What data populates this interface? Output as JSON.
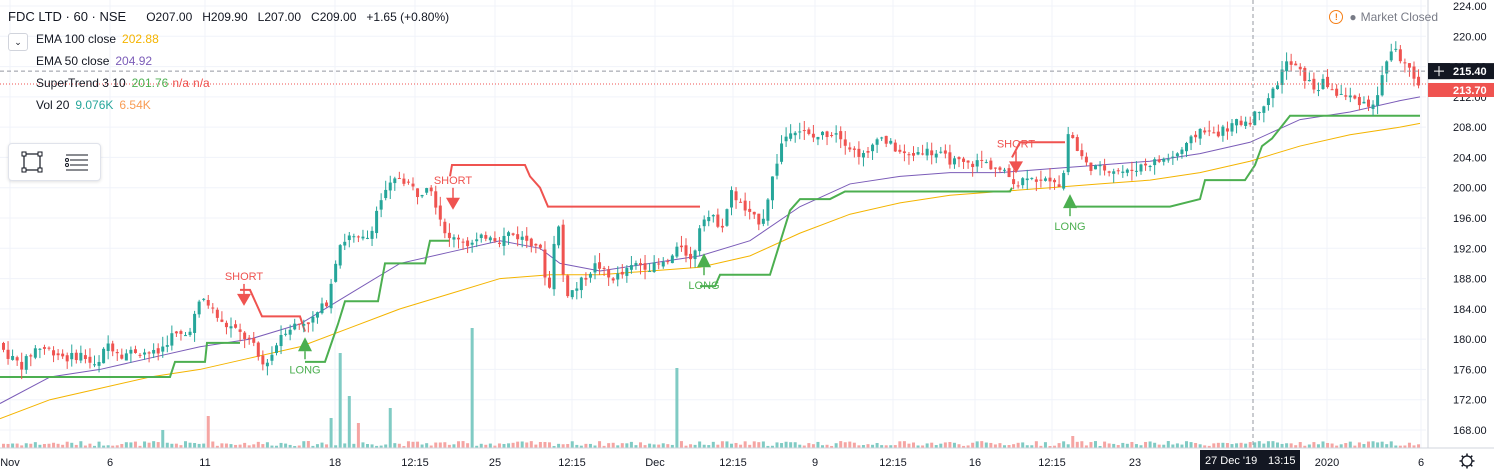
{
  "header": {
    "symbol": "FDC LTD · 60 · NSE",
    "open": "O207.00",
    "high": "H209.90",
    "low": "L207.00",
    "close": "C209.00",
    "change": "+1.65 (+0.80%)"
  },
  "indicators": [
    {
      "name": "EMA 100 close",
      "value": "202.88",
      "color": "#f4b400"
    },
    {
      "name": "EMA 50 close",
      "value": "204.92",
      "color": "#7b5cb8"
    },
    {
      "name": "SuperTrend 3 10",
      "value": "201.76",
      "extra1": "n/a",
      "extra2": "n/a",
      "color": "#4caf50",
      "extra_color": "#ef5350"
    },
    {
      "name": "Vol 20",
      "value": "9.076K",
      "extra1": "6.54K",
      "color": "#26a69a",
      "extra_color": "#f89c54"
    }
  ],
  "status": {
    "market": "Market Closed"
  },
  "chart_data": {
    "type": "candlestick",
    "ylim": [
      166,
      224
    ],
    "y_ticks": [
      168.0,
      172.0,
      176.0,
      180.0,
      184.0,
      188.0,
      192.0,
      196.0,
      200.0,
      204.0,
      208.0,
      212.0,
      216.0,
      220.0,
      224.0
    ],
    "x_ticks": [
      "Nov",
      "6",
      "11",
      "18",
      "12:15",
      "25",
      "12:15",
      "Dec",
      "12:15",
      "9",
      "12:15",
      "16",
      "12:15",
      "23",
      "27 Dec '19",
      "13:15",
      "2020",
      "6"
    ],
    "price_labels": {
      "last": "215.40",
      "current": "213.70"
    },
    "signals": [
      {
        "type": "SHORT",
        "price": 186.5
      },
      {
        "type": "LONG",
        "price": 178.4
      },
      {
        "type": "SHORT",
        "price": 199.2
      },
      {
        "type": "LONG",
        "price": 189.5
      },
      {
        "type": "SHORT",
        "price": 204.0
      },
      {
        "type": "LONG",
        "price": 197.3
      }
    ],
    "close_path": [
      [
        0,
        179.5
      ],
      [
        10,
        178.0
      ],
      [
        25,
        176.5
      ],
      [
        40,
        179.0
      ],
      [
        55,
        178.5
      ],
      [
        70,
        177.5
      ],
      [
        85,
        178.0
      ],
      [
        100,
        176.0
      ],
      [
        110,
        179.5
      ],
      [
        125,
        178.0
      ],
      [
        140,
        178.5
      ],
      [
        160,
        178.0
      ],
      [
        175,
        180.5
      ],
      [
        190,
        180.5
      ],
      [
        205,
        185.5
      ],
      [
        215,
        184.0
      ],
      [
        225,
        182.0
      ],
      [
        235,
        181.5
      ],
      [
        245,
        180.5
      ],
      [
        255,
        179.5
      ],
      [
        265,
        176.5
      ],
      [
        275,
        178.0
      ],
      [
        285,
        181.0
      ],
      [
        300,
        182.0
      ],
      [
        315,
        182.5
      ],
      [
        330,
        185.0
      ],
      [
        342,
        192.5
      ],
      [
        352,
        193.5
      ],
      [
        362,
        193.0
      ],
      [
        372,
        193.5
      ],
      [
        382,
        198.0
      ],
      [
        392,
        200.0
      ],
      [
        402,
        201.5
      ],
      [
        412,
        200.5
      ],
      [
        422,
        199.0
      ],
      [
        432,
        201.0
      ],
      [
        442,
        196.5
      ],
      [
        452,
        193.0
      ],
      [
        462,
        193.5
      ],
      [
        472,
        192.5
      ],
      [
        482,
        193.0
      ],
      [
        492,
        194.0
      ],
      [
        502,
        193.0
      ],
      [
        512,
        194.0
      ],
      [
        522,
        193.5
      ],
      [
        532,
        193.0
      ],
      [
        542,
        192.5
      ],
      [
        552,
        186.0
      ],
      [
        560,
        197.0
      ],
      [
        568,
        186.0
      ],
      [
        578,
        186.5
      ],
      [
        590,
        188.5
      ],
      [
        600,
        190.0
      ],
      [
        612,
        188.0
      ],
      [
        625,
        188.5
      ],
      [
        640,
        190.0
      ],
      [
        655,
        189.5
      ],
      [
        670,
        190.0
      ],
      [
        685,
        192.5
      ],
      [
        695,
        190.0
      ],
      [
        705,
        196.5
      ],
      [
        715,
        196.0
      ],
      [
        725,
        195.0
      ],
      [
        735,
        199.5
      ],
      [
        745,
        197.5
      ],
      [
        755,
        196.0
      ],
      [
        765,
        195.5
      ],
      [
        775,
        201.0
      ],
      [
        785,
        206.0
      ],
      [
        795,
        208.0
      ],
      [
        805,
        207.5
      ],
      [
        815,
        206.5
      ],
      [
        825,
        207.0
      ],
      [
        840,
        207.5
      ],
      [
        855,
        205.0
      ],
      [
        870,
        204.0
      ],
      [
        880,
        207.0
      ],
      [
        895,
        205.5
      ],
      [
        910,
        204.0
      ],
      [
        925,
        205.0
      ],
      [
        940,
        204.5
      ],
      [
        955,
        203.5
      ],
      [
        970,
        203.0
      ],
      [
        985,
        203.5
      ],
      [
        1000,
        202.5
      ],
      [
        1012,
        201.5
      ],
      [
        1022,
        200.5
      ],
      [
        1032,
        202.0
      ],
      [
        1045,
        200.5
      ],
      [
        1055,
        201.5
      ],
      [
        1065,
        200.0
      ],
      [
        1072,
        208.0
      ],
      [
        1080,
        205.0
      ],
      [
        1090,
        203.0
      ],
      [
        1100,
        202.5
      ],
      [
        1115,
        202.5
      ],
      [
        1130,
        202.0
      ],
      [
        1145,
        203.0
      ],
      [
        1160,
        203.5
      ],
      [
        1175,
        204.0
      ],
      [
        1190,
        205.5
      ],
      [
        1205,
        208.0
      ],
      [
        1215,
        207.0
      ],
      [
        1225,
        207.5
      ],
      [
        1240,
        208.5
      ],
      [
        1255,
        209.0
      ],
      [
        1265,
        211.0
      ],
      [
        1278,
        213.0
      ],
      [
        1288,
        216.5
      ],
      [
        1298,
        216.0
      ],
      [
        1308,
        214.5
      ],
      [
        1318,
        213.0
      ],
      [
        1328,
        214.0
      ],
      [
        1338,
        212.5
      ],
      [
        1350,
        212.0
      ],
      [
        1362,
        211.5
      ],
      [
        1372,
        211.0
      ],
      [
        1380,
        211.5
      ],
      [
        1388,
        216.5
      ],
      [
        1396,
        218.5
      ],
      [
        1404,
        217.0
      ],
      [
        1412,
        215.5
      ],
      [
        1418,
        213.5
      ]
    ],
    "supertrend": [
      {
        "color": "#4caf50",
        "points": [
          [
            0,
            175.0
          ],
          [
            170,
            175.0
          ],
          [
            175,
            177.0
          ],
          [
            205,
            177.0
          ],
          [
            207,
            179.5
          ],
          [
            240,
            179.5
          ]
        ]
      },
      {
        "color": "#ef5350",
        "points": [
          [
            240,
            186.5
          ],
          [
            250,
            186.5
          ],
          [
            262,
            183.0
          ],
          [
            300,
            183.0
          ],
          [
            305,
            181.0
          ]
        ]
      },
      {
        "color": "#4caf50",
        "points": [
          [
            305,
            177.0
          ],
          [
            325,
            177.0
          ],
          [
            338,
            182.0
          ],
          [
            345,
            185.0
          ],
          [
            378,
            185.0
          ],
          [
            385,
            190.0
          ],
          [
            425,
            190.0
          ],
          [
            430,
            193.0
          ],
          [
            450,
            193.0
          ]
        ]
      },
      {
        "color": "#ef5350",
        "points": [
          [
            450,
            201.5
          ],
          [
            452,
            203.0
          ],
          [
            525,
            203.0
          ],
          [
            530,
            201.5
          ],
          [
            540,
            200.0
          ],
          [
            548,
            197.5
          ],
          [
            700,
            197.5
          ]
        ]
      },
      {
        "color": "#4caf50",
        "points": [
          [
            700,
            187.0
          ],
          [
            715,
            187.0
          ],
          [
            720,
            188.5
          ],
          [
            770,
            188.5
          ],
          [
            790,
            197.0
          ],
          [
            800,
            198.5
          ],
          [
            830,
            198.5
          ],
          [
            845,
            199.5
          ],
          [
            1010,
            199.5
          ],
          [
            1012,
            200.0
          ]
        ]
      },
      {
        "color": "#ef5350",
        "points": [
          [
            1012,
            204.0
          ],
          [
            1020,
            206.0
          ],
          [
            1065,
            206.0
          ]
        ]
      },
      {
        "color": "#4caf50",
        "points": [
          [
            1065,
            197.5
          ],
          [
            1070,
            197.5
          ],
          [
            1080,
            197.5
          ],
          [
            1170,
            197.5
          ],
          [
            1200,
            198.5
          ],
          [
            1205,
            201.0
          ],
          [
            1245,
            201.0
          ],
          [
            1255,
            203.0
          ],
          [
            1262,
            205.5
          ],
          [
            1272,
            206.5
          ],
          [
            1290,
            209.5
          ],
          [
            1420,
            209.5
          ]
        ]
      }
    ],
    "ema50": [
      [
        0,
        171.5
      ],
      [
        50,
        175.0
      ],
      [
        100,
        176.0
      ],
      [
        150,
        177.5
      ],
      [
        200,
        179.0
      ],
      [
        250,
        180.0
      ],
      [
        300,
        182.0
      ],
      [
        350,
        186.0
      ],
      [
        400,
        190.0
      ],
      [
        450,
        191.5
      ],
      [
        500,
        193.0
      ],
      [
        540,
        192.0
      ],
      [
        560,
        190.0
      ],
      [
        600,
        189.0
      ],
      [
        650,
        190.0
      ],
      [
        700,
        191.0
      ],
      [
        750,
        193.0
      ],
      [
        800,
        197.5
      ],
      [
        850,
        200.5
      ],
      [
        900,
        201.5
      ],
      [
        950,
        202.0
      ],
      [
        1000,
        202.0
      ],
      [
        1050,
        202.5
      ],
      [
        1100,
        203.0
      ],
      [
        1150,
        203.5
      ],
      [
        1200,
        204.5
      ],
      [
        1250,
        206.0
      ],
      [
        1300,
        209.0
      ],
      [
        1350,
        210.0
      ],
      [
        1400,
        211.5
      ],
      [
        1420,
        212.0
      ]
    ],
    "ema100": [
      [
        0,
        169.5
      ],
      [
        50,
        172.0
      ],
      [
        100,
        173.5
      ],
      [
        150,
        175.0
      ],
      [
        200,
        176.0
      ],
      [
        250,
        177.5
      ],
      [
        300,
        179.0
      ],
      [
        350,
        181.5
      ],
      [
        400,
        184.0
      ],
      [
        450,
        186.0
      ],
      [
        500,
        188.0
      ],
      [
        550,
        188.5
      ],
      [
        600,
        188.5
      ],
      [
        650,
        189.0
      ],
      [
        700,
        189.5
      ],
      [
        750,
        191.0
      ],
      [
        800,
        194.0
      ],
      [
        850,
        196.5
      ],
      [
        900,
        198.0
      ],
      [
        950,
        199.0
      ],
      [
        1000,
        199.5
      ],
      [
        1050,
        200.0
      ],
      [
        1100,
        200.5
      ],
      [
        1150,
        201.0
      ],
      [
        1200,
        202.0
      ],
      [
        1250,
        203.5
      ],
      [
        1300,
        205.5
      ],
      [
        1350,
        207.0
      ],
      [
        1400,
        208.0
      ],
      [
        1420,
        208.5
      ]
    ]
  },
  "colors": {
    "up": "#26a69a",
    "down": "#ef5350",
    "vol_up": "#80cbc4",
    "vol_down": "#f5a5a3",
    "grid": "#f0f3fa",
    "axis_text": "#131722"
  }
}
